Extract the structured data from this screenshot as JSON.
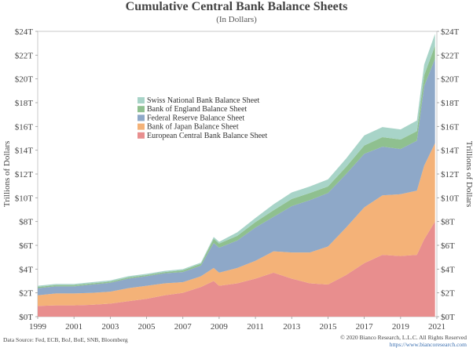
{
  "title": "Cumulative Central Bank Balance Sheets",
  "subtitle": "(In Dollars)",
  "footer": {
    "source": "Data Source: Fed, ECB, BoJ, BoE, SNB, Bloomberg",
    "copyright": "© 2020 Bianco Research, L.L.C. All Rights Reserved",
    "url": "https://www.biancoresearch.com"
  },
  "chart_data": {
    "type": "area",
    "stacked": true,
    "title": "Cumulative Central Bank Balance Sheets",
    "subtitle": "(In Dollars)",
    "ylabel_left": "Trillions of Dollars",
    "ylabel_right": "Trillions of Dollars",
    "ylim": [
      0,
      24
    ],
    "xlim": [
      1999,
      2020.9
    ],
    "x_ticks": [
      "1999",
      "2001",
      "2003",
      "2005",
      "2007",
      "2009",
      "2011",
      "2013",
      "2015",
      "2017",
      "2019",
      "2021"
    ],
    "y_ticks": [
      "$0T",
      "$2T",
      "$4T",
      "$6T",
      "$8T",
      "$10T",
      "$12T",
      "$14T",
      "$16T",
      "$18T",
      "$20T",
      "$22T",
      "$24T"
    ],
    "grid": false,
    "legend_position": "center-left",
    "x": [
      1999,
      2000,
      2001,
      2002,
      2003,
      2004,
      2005,
      2006,
      2007,
      2008,
      2008.7,
      2009,
      2010,
      2011,
      2012,
      2013,
      2014,
      2015,
      2016,
      2017,
      2018,
      2019,
      2019.9,
      2020.3,
      2020.9
    ],
    "series": [
      {
        "name": "European Central Bank Balance Sheet",
        "color": "#e88e8e",
        "values": [
          0.9,
          0.95,
          0.95,
          1.0,
          1.1,
          1.3,
          1.5,
          1.8,
          2.0,
          2.5,
          3.0,
          2.6,
          2.8,
          3.2,
          3.7,
          3.2,
          2.8,
          2.7,
          3.5,
          4.5,
          5.2,
          5.1,
          5.2,
          6.5,
          8.0
        ]
      },
      {
        "name": "Bank of Japan Balance Sheet",
        "color": "#f4b278",
        "values": [
          0.9,
          1.0,
          1.0,
          1.0,
          1.0,
          1.1,
          1.1,
          1.0,
          0.9,
          0.9,
          1.1,
          1.1,
          1.3,
          1.5,
          1.8,
          2.2,
          2.6,
          3.2,
          4.0,
          4.7,
          5.0,
          5.2,
          5.4,
          6.2,
          6.6
        ]
      },
      {
        "name": "Federal Reserve Balance Sheet",
        "color": "#8ea8c8",
        "values": [
          0.6,
          0.6,
          0.6,
          0.7,
          0.75,
          0.8,
          0.8,
          0.85,
          0.85,
          0.9,
          2.1,
          2.1,
          2.3,
          2.8,
          2.9,
          3.9,
          4.4,
          4.5,
          4.5,
          4.5,
          4.1,
          3.8,
          4.2,
          6.7,
          7.1
        ]
      },
      {
        "name": "Bank of England Balance Sheet",
        "color": "#8fc08f",
        "values": [
          0.1,
          0.1,
          0.1,
          0.1,
          0.1,
          0.1,
          0.1,
          0.1,
          0.15,
          0.15,
          0.35,
          0.35,
          0.4,
          0.45,
          0.55,
          0.6,
          0.6,
          0.55,
          0.6,
          0.7,
          0.8,
          0.8,
          0.8,
          0.9,
          1.1
        ]
      },
      {
        "name": "Swiss National Bank Balance Sheet",
        "color": "#a8d4c8",
        "values": [
          0.1,
          0.1,
          0.1,
          0.1,
          0.1,
          0.1,
          0.1,
          0.1,
          0.1,
          0.1,
          0.15,
          0.15,
          0.3,
          0.35,
          0.5,
          0.55,
          0.55,
          0.6,
          0.7,
          0.85,
          0.85,
          0.85,
          0.9,
          0.9,
          1.0
        ]
      }
    ]
  }
}
